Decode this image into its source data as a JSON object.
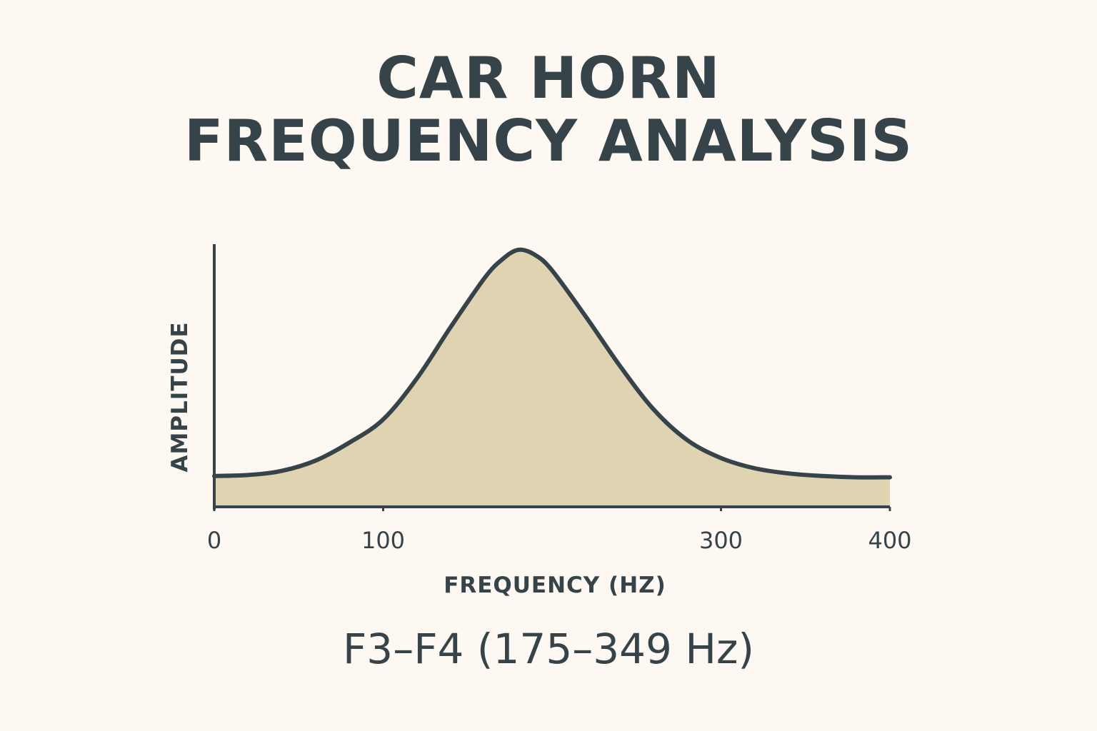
{
  "colors": {
    "background": "#fdf8f1",
    "ink": "#36444a",
    "fill": "#e0d3b1"
  },
  "title": {
    "line1": "CAR HORN",
    "line2": "FREQUENCY ANALYSIS"
  },
  "subtitle": "F3–F4 (175–349 Hz)",
  "chart_data": {
    "type": "area",
    "xlabel": "FREQUENCY (HZ)",
    "ylabel": "AMPLITUDE",
    "xlim": [
      0,
      400
    ],
    "ylim": [
      0,
      1
    ],
    "x_ticks": [
      {
        "value": 0,
        "label": "0"
      },
      {
        "value": 100,
        "label": "100"
      },
      {
        "value": 300,
        "label": "300"
      },
      {
        "value": 400,
        "label": "400"
      }
    ],
    "grid": false,
    "series": [
      {
        "x": [
          0,
          20,
          40,
          60,
          80,
          100,
          120,
          140,
          160,
          170,
          180,
          190,
          200,
          220,
          240,
          260,
          280,
          300,
          320,
          340,
          360,
          380,
          400
        ],
        "y": [
          0.12,
          0.124,
          0.14,
          0.18,
          0.25,
          0.34,
          0.5,
          0.7,
          0.89,
          0.96,
          1.0,
          0.98,
          0.92,
          0.74,
          0.55,
          0.38,
          0.26,
          0.19,
          0.15,
          0.13,
          0.12,
          0.115,
          0.115
        ]
      }
    ]
  }
}
